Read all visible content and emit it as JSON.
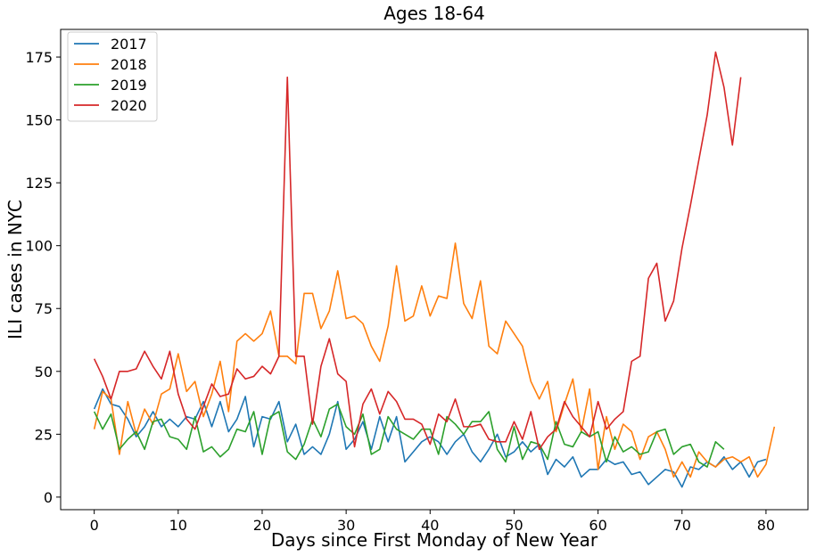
{
  "chart_data": {
    "type": "line",
    "title": "Ages 18-64",
    "xlabel": "Days since First Monday of New Year",
    "ylabel": "ILI cases in NYC",
    "xlim": [
      -4,
      85
    ],
    "ylim": [
      -5,
      186
    ],
    "xticks": [
      0,
      10,
      20,
      30,
      40,
      50,
      60,
      70,
      80
    ],
    "yticks": [
      0,
      25,
      50,
      75,
      100,
      125,
      150,
      175
    ],
    "grid": false,
    "legend_position": "top-left",
    "series": [
      {
        "name": "2017",
        "color": "#1f77b4",
        "values": [
          35,
          43,
          37,
          36,
          31,
          24,
          28,
          34,
          28,
          31,
          28,
          32,
          31,
          38,
          28,
          38,
          26,
          31,
          40,
          20,
          32,
          31,
          38,
          22,
          29,
          17,
          20,
          17,
          25,
          38,
          19,
          23,
          30,
          19,
          32,
          22,
          32,
          14,
          18,
          22,
          24,
          22,
          17,
          22,
          25,
          18,
          14,
          19,
          25,
          16,
          18,
          22,
          18,
          21,
          9,
          15,
          12,
          16,
          8,
          11,
          11,
          15,
          13,
          14,
          9,
          10,
          5,
          8,
          11,
          10,
          4,
          12,
          11,
          14,
          12,
          16,
          11,
          14,
          8,
          14,
          15
        ]
      },
      {
        "name": "2018",
        "color": "#ff7f0e",
        "values": [
          27,
          42,
          39,
          17,
          38,
          25,
          35,
          29,
          41,
          43,
          57,
          42,
          46,
          32,
          41,
          54,
          34,
          62,
          65,
          62,
          65,
          74,
          56,
          56,
          53,
          81,
          81,
          67,
          74,
          90,
          71,
          72,
          69,
          60,
          54,
          68,
          92,
          70,
          72,
          84,
          72,
          80,
          79,
          101,
          77,
          71,
          86,
          60,
          57,
          70,
          65,
          60,
          46,
          39,
          46,
          26,
          37,
          47,
          26,
          43,
          11,
          32,
          19,
          29,
          26,
          15,
          24,
          26,
          19,
          8,
          14,
          8,
          18,
          14,
          12,
          15,
          16,
          14,
          16,
          8,
          13,
          28
        ]
      },
      {
        "name": "2019",
        "color": "#2ca02c",
        "values": [
          34,
          27,
          33,
          19,
          23,
          26,
          19,
          30,
          31,
          24,
          23,
          19,
          32,
          18,
          20,
          16,
          19,
          27,
          26,
          34,
          17,
          32,
          34,
          18,
          15,
          21,
          31,
          24,
          35,
          37,
          28,
          25,
          33,
          17,
          19,
          32,
          27,
          25,
          23,
          27,
          27,
          17,
          32,
          29,
          25,
          30,
          30,
          34,
          19,
          14,
          28,
          15,
          22,
          21,
          15,
          30,
          21,
          20,
          26,
          24,
          26,
          14,
          24,
          18,
          20,
          17,
          18,
          26,
          27,
          17,
          20,
          21,
          14,
          12,
          22,
          19
        ]
      },
      {
        "name": "2020",
        "color": "#d62728",
        "values": [
          55,
          48,
          39,
          50,
          50,
          51,
          58,
          52,
          47,
          58,
          41,
          31,
          27,
          36,
          45,
          40,
          41,
          51,
          47,
          48,
          52,
          49,
          56,
          167,
          56,
          56,
          29,
          52,
          63,
          49,
          46,
          20,
          37,
          43,
          33,
          42,
          38,
          31,
          31,
          29,
          21,
          33,
          30,
          39,
          28,
          28,
          29,
          23,
          22,
          22,
          30,
          23,
          34,
          19,
          24,
          27,
          38,
          32,
          28,
          24,
          38,
          27,
          31,
          34,
          54,
          56,
          87,
          93,
          70,
          78,
          99,
          116,
          134,
          152,
          177,
          163,
          140,
          167
        ]
      }
    ]
  }
}
